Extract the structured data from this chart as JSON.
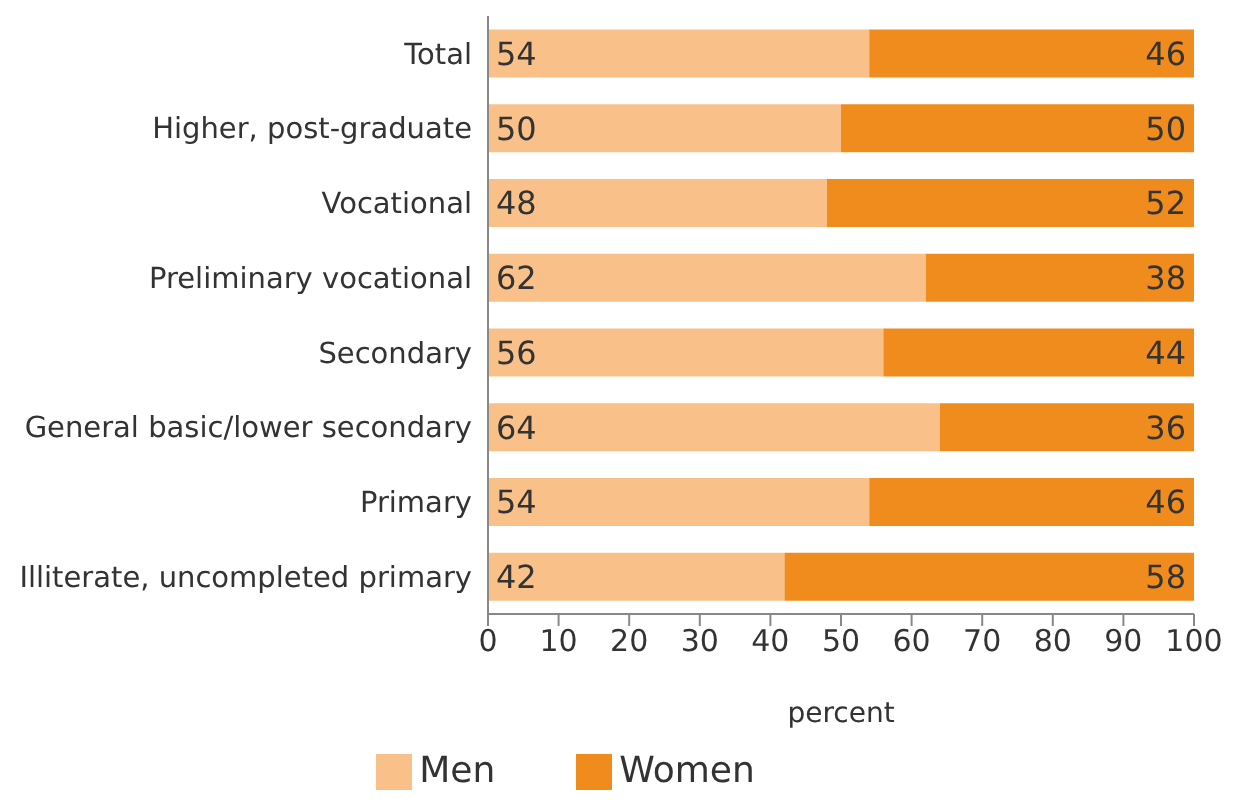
{
  "chart_data": {
    "type": "bar",
    "orientation": "horizontal",
    "stacked": true,
    "xlabel": "percent",
    "categories": [
      "Total",
      "Higher, post-graduate",
      "Vocational",
      "Preliminary vocational",
      "Secondary",
      "General basic/lower secondary",
      "Primary",
      "Illiterate, uncompleted primary"
    ],
    "series": [
      {
        "name": "Men",
        "color": "#f9c189",
        "values": [
          54,
          50,
          48,
          62,
          56,
          64,
          54,
          42
        ]
      },
      {
        "name": "Women",
        "color": "#f08c1e",
        "values": [
          46,
          50,
          52,
          38,
          44,
          36,
          46,
          58
        ]
      }
    ],
    "xlim": [
      0,
      100
    ],
    "xticks": [
      0,
      10,
      20,
      30,
      40,
      50,
      60,
      70,
      80,
      90,
      100
    ],
    "grid": false,
    "legend": "bottom",
    "data_labels": true
  }
}
